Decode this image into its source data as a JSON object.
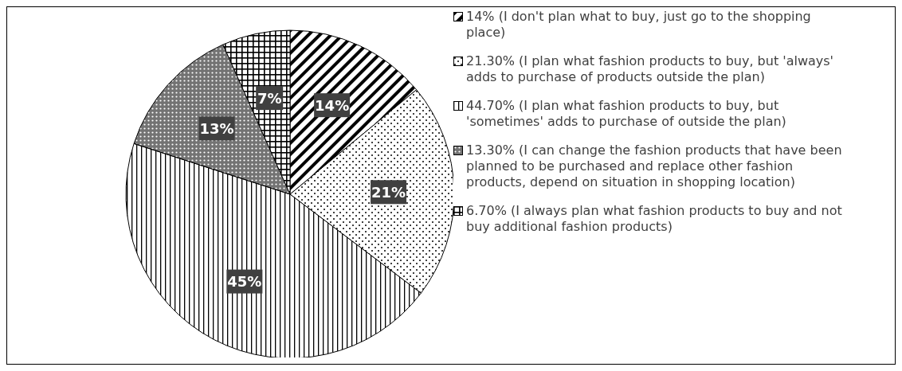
{
  "chart_data": {
    "type": "pie",
    "categories": [
      "14% (I don't plan what to buy, just go to the shopping place)",
      "21.30% (I plan what fashion products to buy, but 'always' adds to purchase of products outside the plan)",
      "44.70% (I plan what fashion products to buy, but 'sometimes' adds to purchase of outside the plan)",
      "13.30% (I can change the fashion products that have been planned to be purchased and replace other fashion products, depend on situation in shopping location)",
      "6.70% (I always plan what fashion products to buy and not buy additional fashion products)"
    ],
    "values": [
      14,
      21.3,
      44.7,
      13.3,
      6.7
    ],
    "value_labels": [
      "14%",
      "21%",
      "45%",
      "13%",
      "7%"
    ],
    "colors": [
      "#000000",
      "#000000",
      "#000000",
      "#000000",
      "#000000"
    ],
    "legend": "right"
  }
}
